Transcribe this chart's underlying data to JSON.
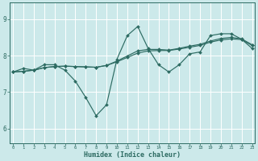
{
  "xlabel": "Humidex (Indice chaleur)",
  "bg_color": "#cce9ea",
  "grid_color": "#ffffff",
  "line_color": "#2d6b62",
  "x_ticks": [
    0,
    1,
    2,
    3,
    4,
    5,
    6,
    7,
    8,
    9,
    10,
    11,
    12,
    13,
    14,
    15,
    16,
    17,
    18,
    19,
    20,
    21,
    22,
    23
  ],
  "y_ticks": [
    6,
    7,
    8,
    9
  ],
  "ylim": [
    5.6,
    9.45
  ],
  "xlim": [
    -0.3,
    23.3
  ],
  "series1_y": [
    7.55,
    7.65,
    7.6,
    7.75,
    7.75,
    7.6,
    7.3,
    6.85,
    6.35,
    6.65,
    7.9,
    8.55,
    8.8,
    8.2,
    7.75,
    7.55,
    7.75,
    8.05,
    8.1,
    8.55,
    8.6,
    8.6,
    8.45,
    8.2
  ],
  "series2_y": [
    7.55,
    7.57,
    7.6,
    7.67,
    7.7,
    7.71,
    7.7,
    7.69,
    7.68,
    7.73,
    7.83,
    7.95,
    8.07,
    8.13,
    8.14,
    8.14,
    8.18,
    8.23,
    8.28,
    8.37,
    8.43,
    8.46,
    8.44,
    8.28
  ],
  "series3_y": [
    7.55,
    7.57,
    7.6,
    7.67,
    7.7,
    7.71,
    7.7,
    7.69,
    7.68,
    7.73,
    7.85,
    7.99,
    8.13,
    8.17,
    8.17,
    8.15,
    8.2,
    8.26,
    8.31,
    8.4,
    8.47,
    8.5,
    8.46,
    8.3
  ]
}
